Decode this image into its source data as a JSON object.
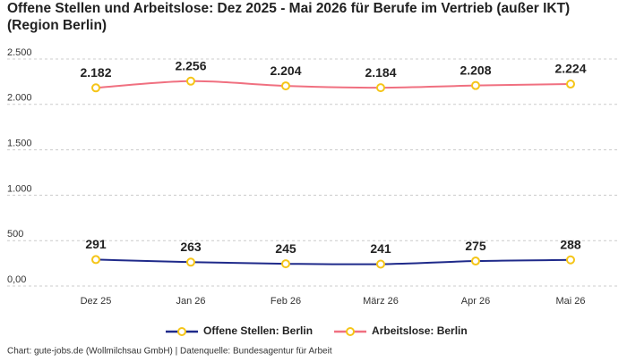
{
  "chart_data": {
    "type": "line",
    "title": "Offene Stellen und Arbeitslose: Dez 2025 - Mai 2026 für Berufe im Vertrieb (außer IKT) (Region Berlin)",
    "categories": [
      "Dez 25",
      "Jan 26",
      "Feb 26",
      "März 26",
      "Apr 26",
      "Mai 26"
    ],
    "series": [
      {
        "name": "Offene Stellen: Berlin",
        "color": "#1f2a8a",
        "values": [
          291,
          263,
          245,
          241,
          275,
          288
        ]
      },
      {
        "name": "Arbeitslose: Berlin",
        "color": "#f07080",
        "values": [
          2182,
          2256,
          2204,
          2184,
          2208,
          2224
        ],
        "value_labels": [
          "2.182",
          "2.256",
          "2.204",
          "2.184",
          "2.208",
          "2.224"
        ]
      }
    ],
    "marker_color": "#f5c518",
    "ylim": [
      0,
      2500
    ],
    "yticks": [
      {
        "value": 0,
        "label": "0,00"
      },
      500,
      {
        "value": 1000,
        "label": "1.000"
      },
      {
        "value": 1500,
        "label": "1.500"
      },
      {
        "value": 2000,
        "label": "2.000"
      },
      {
        "value": 2500,
        "label": "2.500"
      }
    ],
    "grid": true,
    "legend": "bottom",
    "source": "Chart: gute-jobs.de (Wollmilchsau GmbH) | Datenquelle: Bundesagentur für Arbeit"
  }
}
